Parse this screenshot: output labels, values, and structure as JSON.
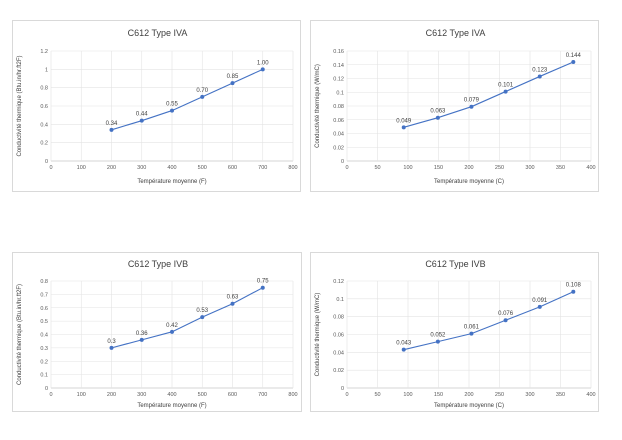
{
  "chart_data": [
    {
      "type": "line",
      "title": "C612 Type IVA",
      "xlabel": "Température moyenne (F)",
      "ylabel": "Conductivité thermique (Btu.in/hr.ft2F)",
      "xlim": [
        0,
        800
      ],
      "ylim": [
        0,
        1.2
      ],
      "xticks": [
        "0",
        "100",
        "200",
        "300",
        "400",
        "500",
        "600",
        "700",
        "800"
      ],
      "yticks": [
        "0",
        "0.2",
        "0.4",
        "0.6",
        "0.8",
        "1",
        "1.2"
      ],
      "grid": true,
      "series": [
        {
          "color": "#4472c4",
          "x": [
            200,
            300,
            400,
            500,
            600,
            700
          ],
          "y": [
            0.34,
            0.44,
            0.55,
            0.7,
            0.85,
            1.0
          ],
          "labels": [
            "0.34",
            "0.44",
            "0.55",
            "0.70",
            "0.85",
            "1.00"
          ]
        }
      ]
    },
    {
      "type": "line",
      "title": "C612 Type IVA",
      "xlabel": "Température moyenne (C)",
      "ylabel": "Conductivité thermique (W/mC)",
      "xlim": [
        0,
        400
      ],
      "ylim": [
        0,
        0.16
      ],
      "xticks": [
        "0",
        "50",
        "100",
        "150",
        "200",
        "250",
        "300",
        "350",
        "400"
      ],
      "yticks": [
        "0",
        "0.02",
        "0.04",
        "0.06",
        "0.08",
        "0.1",
        "0.12",
        "0.14",
        "0.16"
      ],
      "grid": true,
      "series": [
        {
          "color": "#4472c4",
          "x": [
            93,
            149,
            204,
            260,
            316,
            371
          ],
          "y": [
            0.049,
            0.063,
            0.079,
            0.101,
            0.123,
            0.144
          ],
          "labels": [
            "0.049",
            "0.063",
            "0.079",
            "0.101",
            "0.123",
            "0.144"
          ]
        }
      ]
    },
    {
      "type": "line",
      "title": "C612 Type IVB",
      "xlabel": "Température moyenne (F)",
      "ylabel": "Conductivité thermique (Btu.in/hr.ft2F)",
      "xlim": [
        0,
        800
      ],
      "ylim": [
        0,
        0.8
      ],
      "xticks": [
        "0",
        "100",
        "200",
        "300",
        "400",
        "500",
        "600",
        "700",
        "800"
      ],
      "yticks": [
        "0",
        "0.1",
        "0.2",
        "0.3",
        "0.4",
        "0.5",
        "0.6",
        "0.7",
        "0.8"
      ],
      "grid": true,
      "series": [
        {
          "color": "#4472c4",
          "x": [
            200,
            300,
            400,
            500,
            600,
            700
          ],
          "y": [
            0.3,
            0.36,
            0.42,
            0.53,
            0.63,
            0.75
          ],
          "labels": [
            "0.3",
            "0.36",
            "0.42",
            "0.53",
            "0.63",
            "0.75"
          ]
        }
      ]
    },
    {
      "type": "line",
      "title": "C612 Type IVB",
      "xlabel": "Température moyenne (C)",
      "ylabel": "Conductivité thermique (W/mC)",
      "xlim": [
        0,
        400
      ],
      "ylim": [
        0,
        0.12
      ],
      "xticks": [
        "0",
        "50",
        "100",
        "150",
        "200",
        "250",
        "300",
        "350",
        "400"
      ],
      "yticks": [
        "0",
        "0.02",
        "0.04",
        "0.06",
        "0.08",
        "0.1",
        "0.12"
      ],
      "grid": true,
      "series": [
        {
          "color": "#4472c4",
          "x": [
            93,
            149,
            204,
            260,
            316,
            371
          ],
          "y": [
            0.043,
            0.052,
            0.061,
            0.076,
            0.091,
            0.108
          ],
          "labels": [
            "0.043",
            "0.052",
            "0.061",
            "0.076",
            "0.091",
            "0.108"
          ]
        }
      ]
    }
  ]
}
